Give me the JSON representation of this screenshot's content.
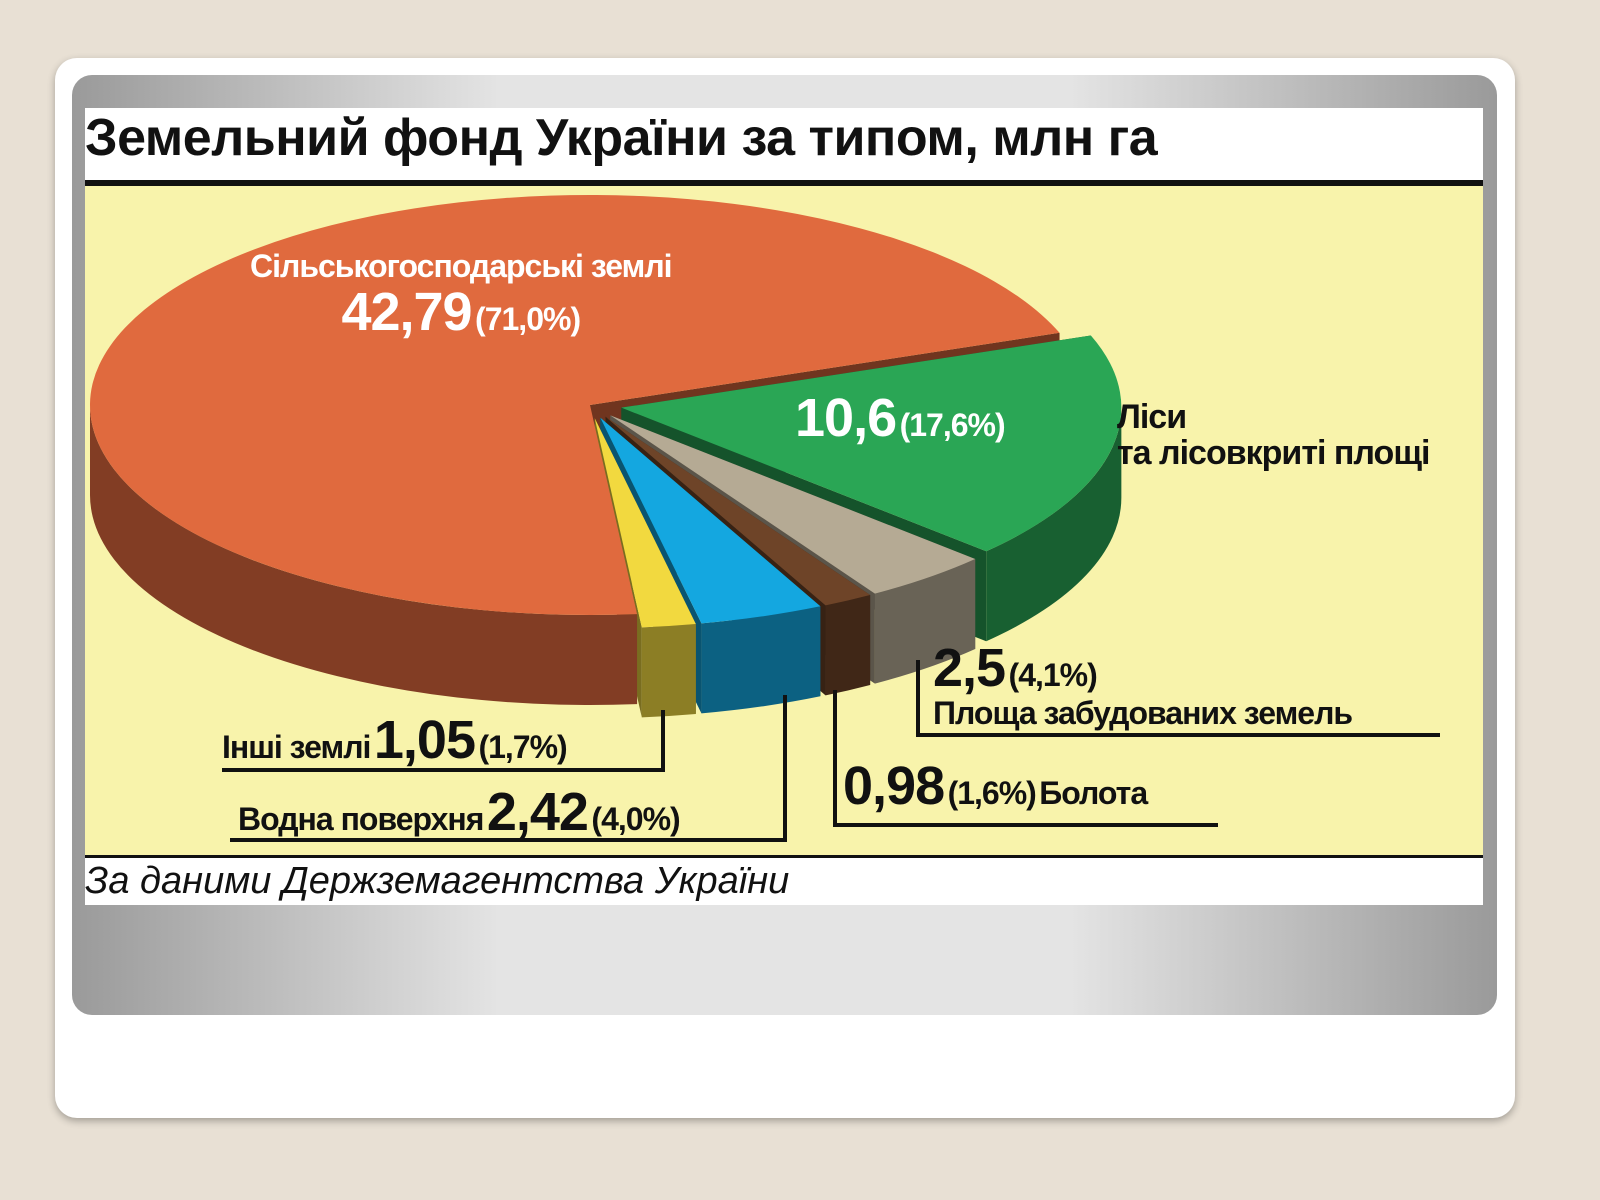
{
  "chart_data": {
    "type": "pie",
    "title": "Земельний фонд України за типом, млн га",
    "categories": [
      "Сільськогосподарські землі",
      "Ліси\nта лісовкриті площі",
      "Площа забудованих земель",
      "Болота",
      "Водна поверхня",
      "Інші землі"
    ],
    "values": [
      42.79,
      10.6,
      2.5,
      0.98,
      2.42,
      1.05
    ],
    "value_labels": [
      "42,79",
      "10,6",
      "2,5",
      "0,98",
      "2,42",
      "1,05"
    ],
    "percentages": [
      71.0,
      17.6,
      4.1,
      1.6,
      4.0,
      1.7
    ],
    "percentage_labels": [
      "(71,0%)",
      "(17,6%)",
      "(4,1%)",
      "(1,6%)",
      "(4,0%)",
      "(1,7%)"
    ],
    "colors": [
      "#e06a3e",
      "#2aa655",
      "#b5aa94",
      "#6e4428",
      "#14a7e0",
      "#f2d93f"
    ],
    "source": "За даними Держземагентства України"
  }
}
